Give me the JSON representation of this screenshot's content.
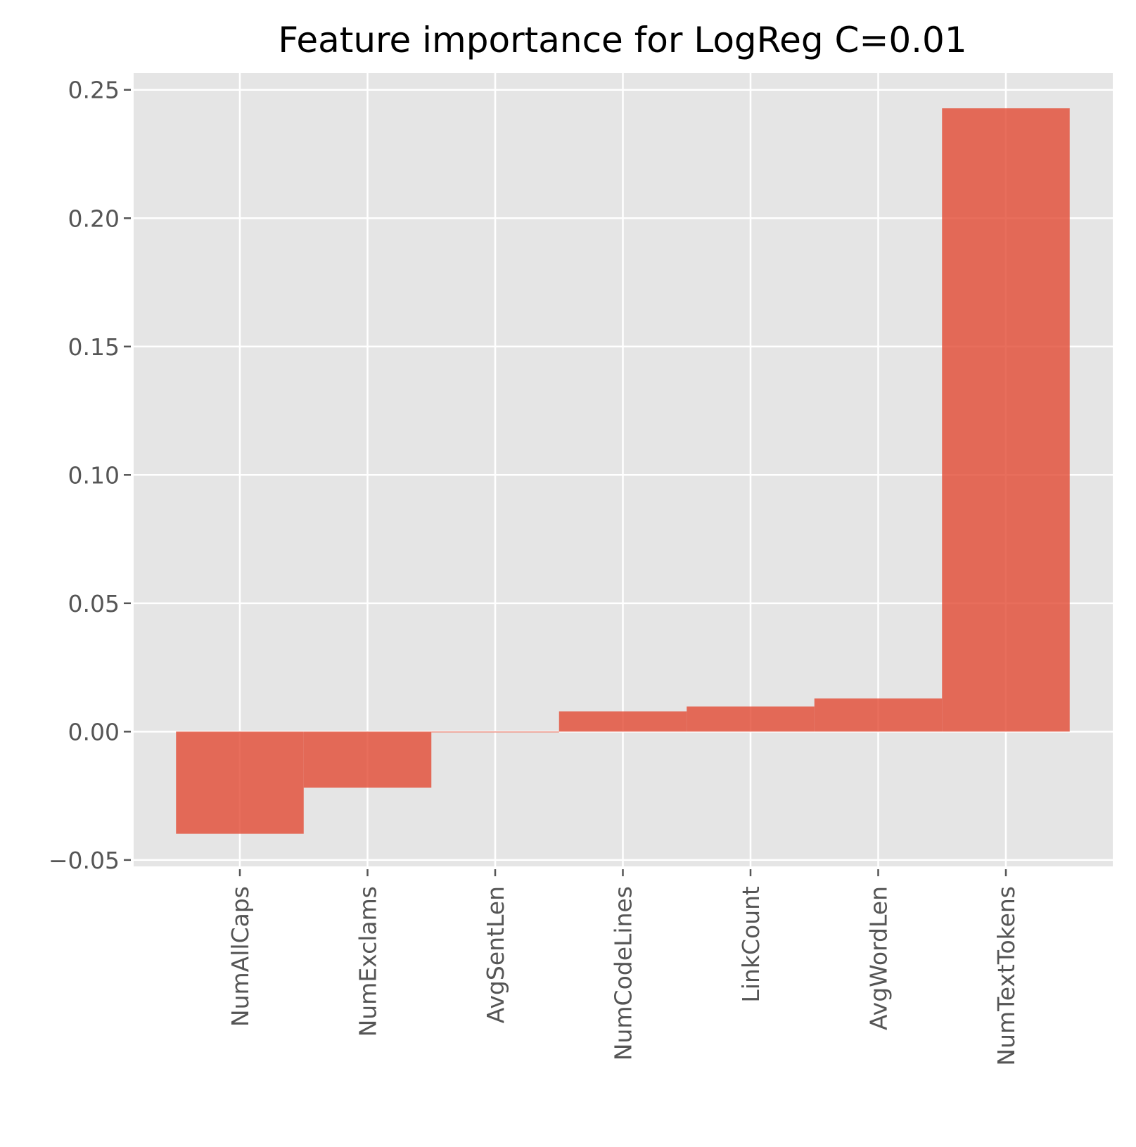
{
  "chart_data": {
    "type": "bar",
    "title": "Feature importance for LogReg C=0.01",
    "xlabel": "",
    "ylabel": "",
    "categories": [
      "NumAllCaps",
      "NumExclams",
      "AvgSentLen",
      "NumCodeLines",
      "LinkCount",
      "AvgWordLen",
      "NumTextTokens"
    ],
    "values": [
      -0.0398,
      -0.0218,
      -0.0003,
      0.0079,
      0.0098,
      0.0129,
      0.2428
    ],
    "ylim": [
      -0.0525,
      0.2565
    ],
    "yticks": [
      -0.05,
      0.0,
      0.05,
      0.1,
      0.15,
      0.2,
      0.25
    ],
    "ytick_labels": [
      "−0.05",
      "0.00",
      "0.05",
      "0.10",
      "0.15",
      "0.20",
      "0.25"
    ],
    "grid": true,
    "legend": "none",
    "colors": {
      "bar": "#E24A33",
      "bar_opacity": 0.8,
      "axes_background": "#E5E5E5",
      "grid": "#FFFFFF",
      "tick_label": "#555555",
      "title": "#000000"
    }
  }
}
